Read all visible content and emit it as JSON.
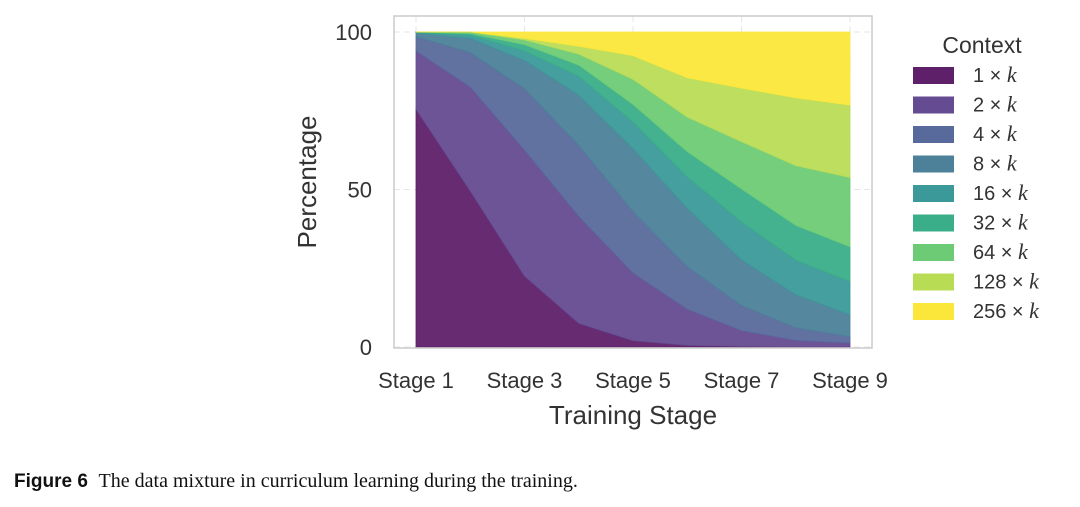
{
  "chart_data": {
    "type": "area",
    "stacked": true,
    "title": "",
    "xlabel": "Training Stage",
    "ylabel": "Percentage",
    "x": [
      1,
      2,
      3,
      4,
      5,
      6,
      7,
      8,
      9
    ],
    "xticks": [
      "Stage 1",
      "Stage 3",
      "Stage 5",
      "Stage 7",
      "Stage 9"
    ],
    "ylim": [
      0,
      100
    ],
    "yticks": [
      0,
      50,
      100
    ],
    "grid": true,
    "legend_title": "Context",
    "legend_placement": "right",
    "series": [
      {
        "name": "1 × k",
        "color": "#5e2069",
        "values": [
          75.5,
          49.5,
          22.5,
          7.5,
          2.0,
          0.5,
          0.2,
          0.1,
          0.1
        ]
      },
      {
        "name": "2 × k",
        "color": "#654b91",
        "values": [
          18.5,
          33.0,
          40.0,
          34.0,
          21.5,
          11.5,
          5.0,
          2.0,
          1.2
        ]
      },
      {
        "name": "4 × k",
        "color": "#586a9c",
        "values": [
          4.5,
          11.0,
          19.5,
          22.5,
          19.5,
          13.5,
          8.0,
          4.0,
          2.0
        ]
      },
      {
        "name": "8 × k",
        "color": "#4c8199",
        "values": [
          1.2,
          4.5,
          9.0,
          16.0,
          20.0,
          18.5,
          14.5,
          10.5,
          7.0
        ]
      },
      {
        "name": "16 × k",
        "color": "#3b9a99",
        "values": [
          0.2,
          1.0,
          3.0,
          6.0,
          8.5,
          10.0,
          12.0,
          11.0,
          10.5
        ]
      },
      {
        "name": "32 × k",
        "color": "#3aae88",
        "values": [
          0.1,
          0.5,
          2.0,
          3.5,
          5.5,
          8.0,
          10.5,
          11.0,
          11.0
        ]
      },
      {
        "name": "64 × k",
        "color": "#6dcb75",
        "values": [
          0.0,
          0.5,
          1.5,
          3.5,
          8.0,
          11.0,
          15.0,
          19.0,
          22.0
        ]
      },
      {
        "name": "128 × k",
        "color": "#b9dc55",
        "values": [
          0.0,
          0.0,
          0.5,
          2.5,
          7.5,
          12.5,
          17.0,
          21.5,
          23.0
        ]
      },
      {
        "name": "256 × k",
        "color": "#fbe73a",
        "values": [
          0.0,
          0.0,
          2.0,
          4.5,
          7.5,
          14.5,
          17.8,
          20.9,
          23.2
        ]
      }
    ]
  },
  "caption": {
    "label": "Figure 6",
    "text": "The data mixture in curriculum learning during the training."
  }
}
